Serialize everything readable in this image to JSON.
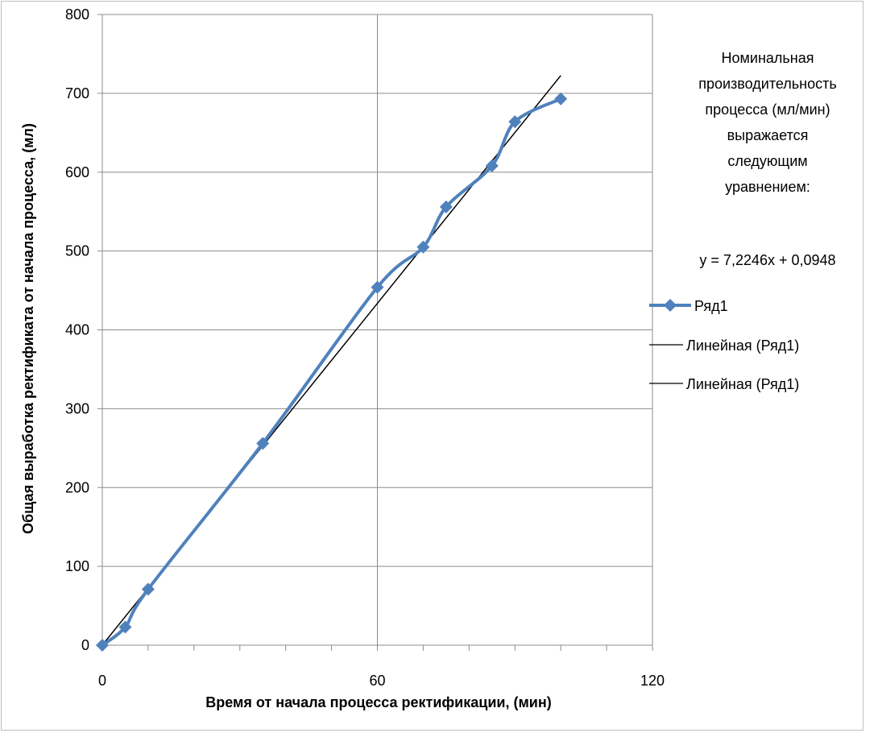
{
  "chart_data": {
    "type": "line",
    "xlabel": "Время от начала процесса ректификации, (мин)",
    "ylabel": "Общая выработка ректификата от начала процесса, (мл)",
    "xlim": [
      0,
      120
    ],
    "ylim": [
      0,
      800
    ],
    "x_major_ticks": [
      0,
      60,
      120
    ],
    "x_minor_step": 10,
    "y_ticks": [
      0,
      100,
      200,
      300,
      400,
      500,
      600,
      700,
      800
    ],
    "grid": true,
    "legend_position": "right",
    "series": [
      {
        "name": "Ряд1",
        "color": "#4f81bd",
        "marker": "diamond",
        "smooth": true,
        "x": [
          0,
          5,
          10,
          35,
          60,
          70,
          75,
          85,
          90,
          100
        ],
        "y": [
          0,
          23,
          71,
          256,
          454,
          505,
          556,
          608,
          664,
          693
        ]
      }
    ],
    "trendlines": [
      {
        "name": "Линейная (Ряд1)",
        "color": "#000000",
        "slope": 7.2246,
        "intercept": 0.0948,
        "x_range": [
          0,
          100
        ]
      },
      {
        "name": "Линейная (Ряд1)",
        "color": "#000000",
        "slope": 7.2246,
        "intercept": 0.0948,
        "x_range": [
          0,
          100
        ]
      }
    ],
    "annotation": {
      "lines": [
        "Номинальная",
        "производительность",
        "процесса (мл/мин)",
        "выражается",
        "следующим",
        "уравнением:"
      ],
      "equation": "y = 7,2246x + 0,0948"
    }
  }
}
